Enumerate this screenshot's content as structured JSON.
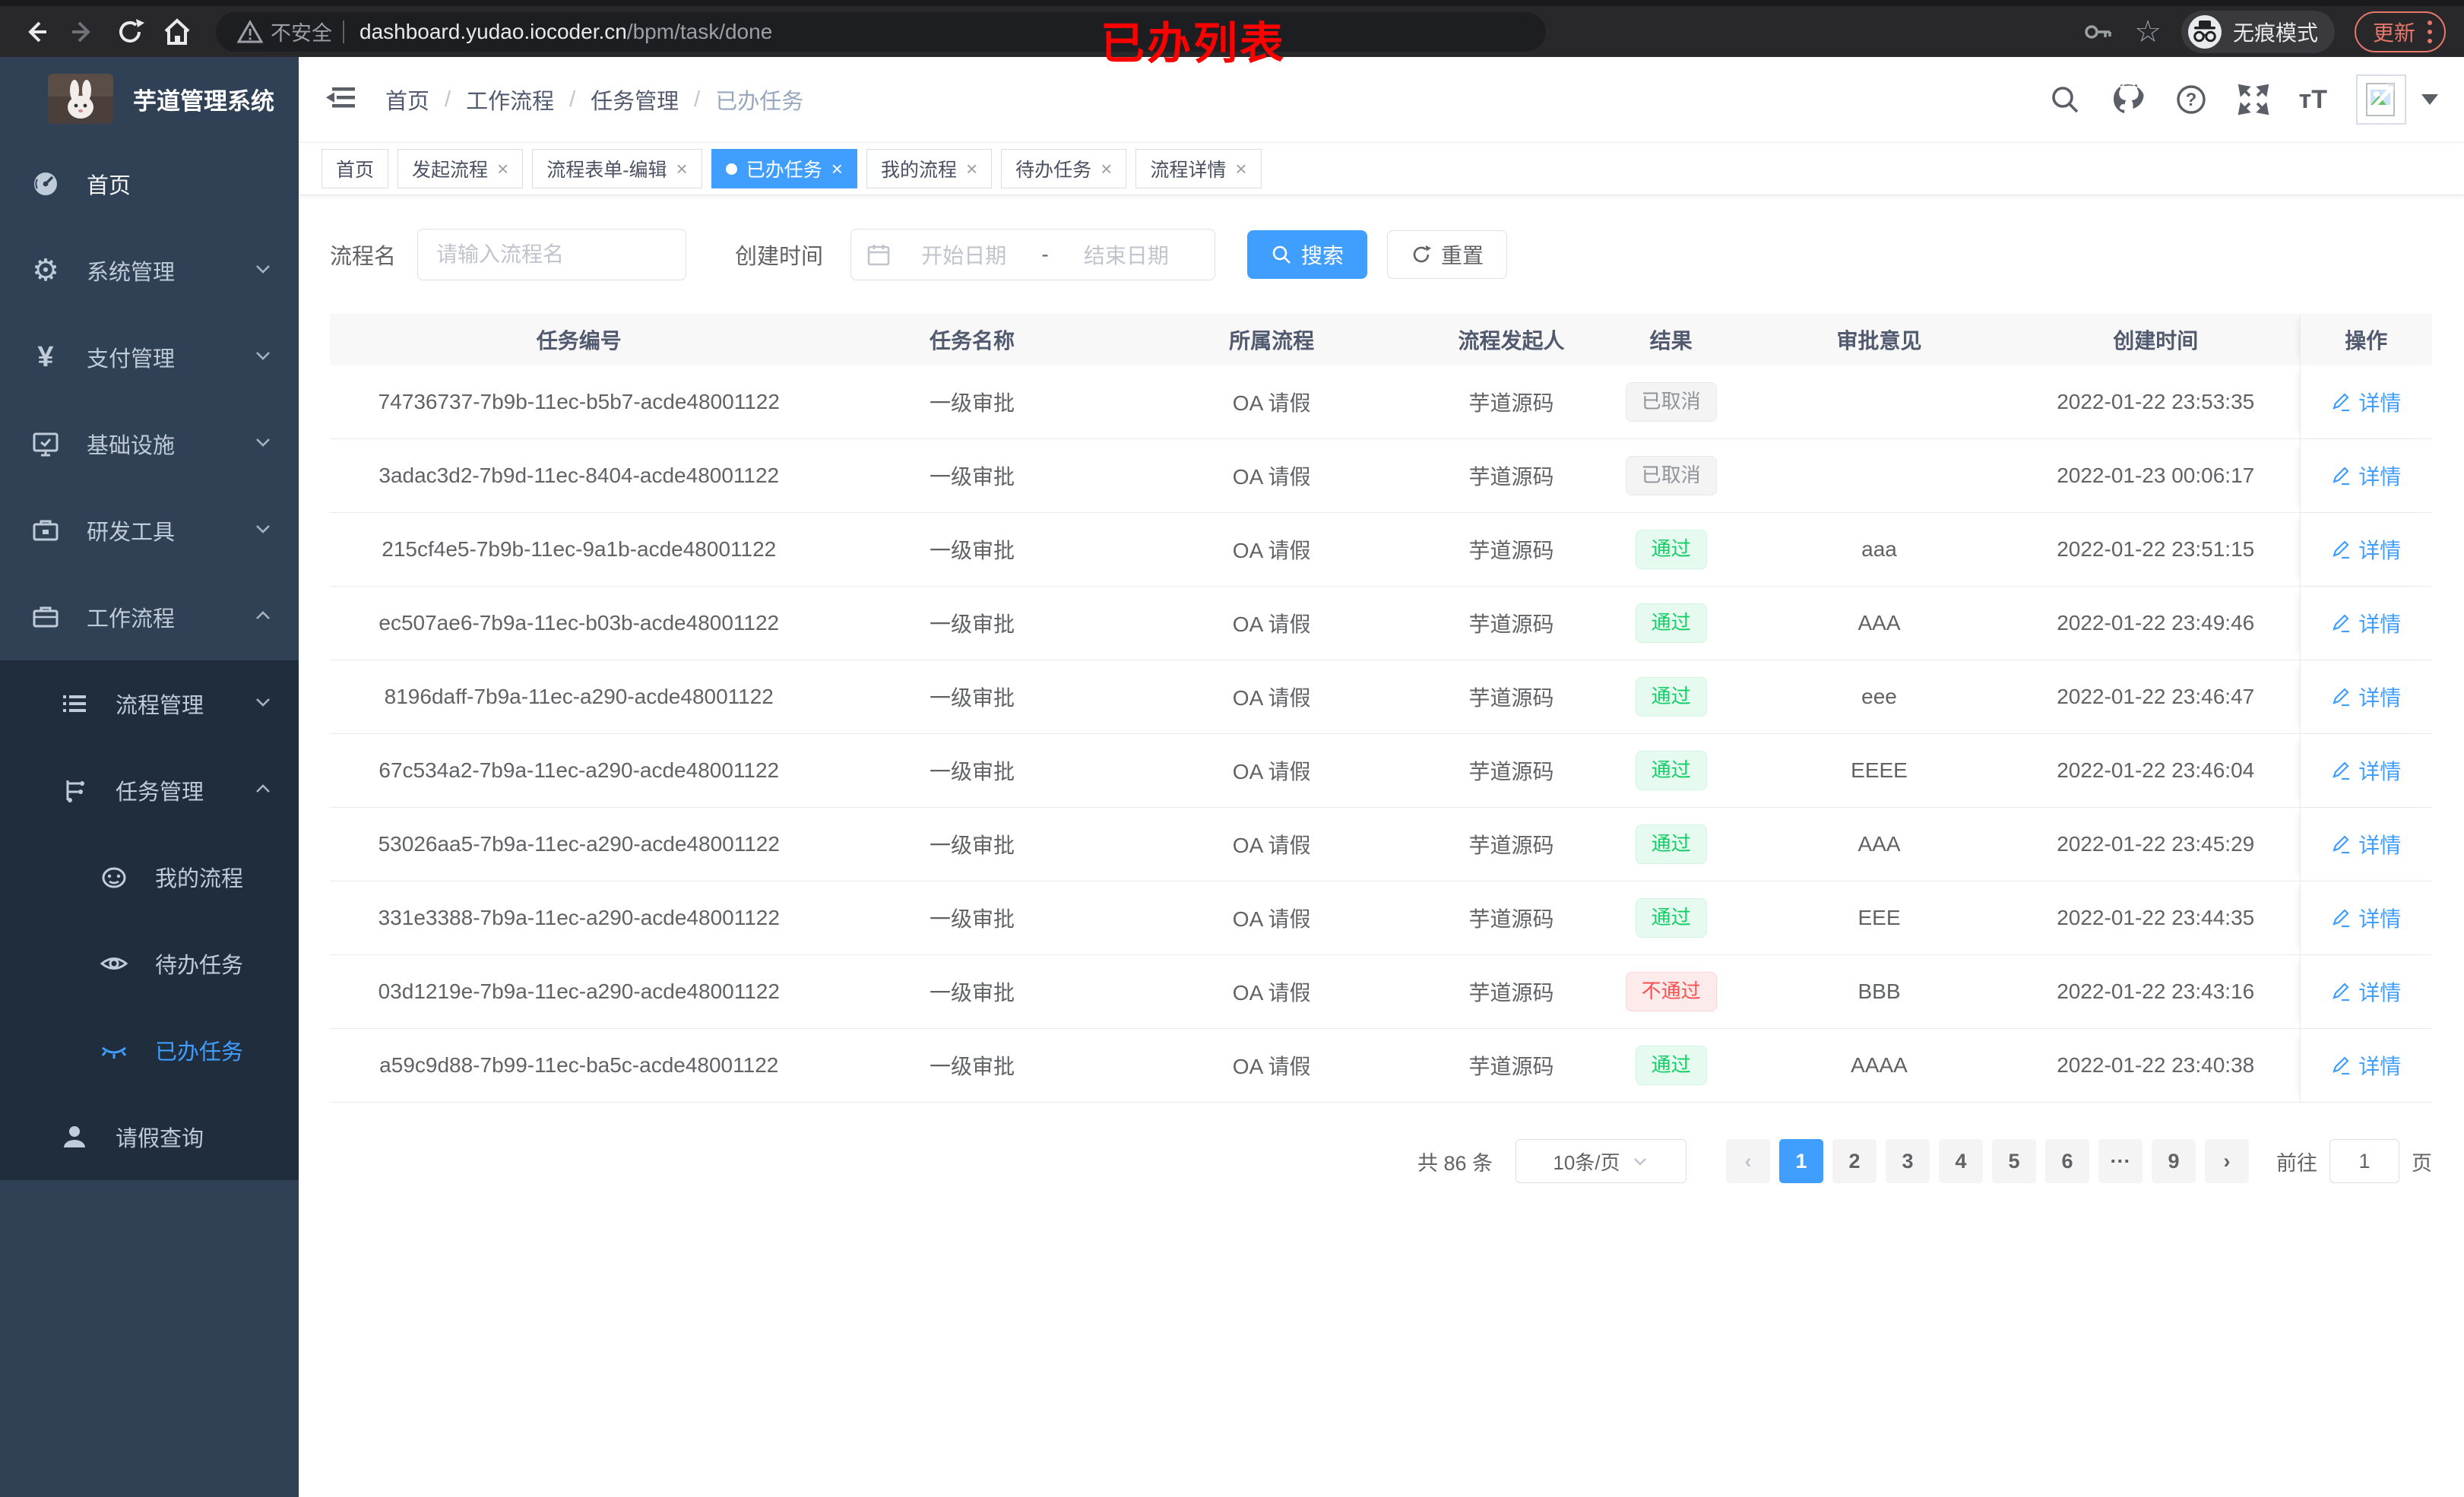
{
  "colors": {
    "accent": "#409eff",
    "success": "#13ce66",
    "danger": "#f9514f",
    "info": "#909399",
    "sidebar": "#304156",
    "submenu": "#1f2d3d",
    "annotation": "#ff0000"
  },
  "browser": {
    "security_label": "不安全",
    "url_domain": "dashboard.yudao.iocoder.cn",
    "url_path": "/bpm/task/done",
    "incognito_label": "无痕模式",
    "update_label": "更新"
  },
  "annotation": {
    "text": "已办列表"
  },
  "sidebar": {
    "app_title": "芋道管理系统",
    "menu": [
      {
        "label": "首页"
      },
      {
        "label": "系统管理"
      },
      {
        "label": "支付管理"
      },
      {
        "label": "基础设施"
      },
      {
        "label": "研发工具"
      },
      {
        "label": "工作流程"
      }
    ],
    "submenu": [
      {
        "label": "流程管理"
      },
      {
        "label": "任务管理"
      },
      {
        "label": "我的流程"
      },
      {
        "label": "待办任务"
      },
      {
        "label": "已办任务"
      },
      {
        "label": "请假查询"
      }
    ]
  },
  "breadcrumb": {
    "items": [
      "首页",
      "工作流程",
      "任务管理",
      "已办任务"
    ]
  },
  "tabs": [
    {
      "label": "首页",
      "closable": false,
      "active": false
    },
    {
      "label": "发起流程",
      "closable": true,
      "active": false
    },
    {
      "label": "流程表单-编辑",
      "closable": true,
      "active": false
    },
    {
      "label": "已办任务",
      "closable": true,
      "active": true
    },
    {
      "label": "我的流程",
      "closable": true,
      "active": false
    },
    {
      "label": "待办任务",
      "closable": true,
      "active": false
    },
    {
      "label": "流程详情",
      "closable": true,
      "active": false
    }
  ],
  "filters": {
    "name_label": "流程名",
    "name_placeholder": "请输入流程名",
    "time_label": "创建时间",
    "start_placeholder": "开始日期",
    "range_separator": "-",
    "end_placeholder": "结束日期",
    "search_label": "搜索",
    "reset_label": "重置"
  },
  "table": {
    "columns": [
      "任务编号",
      "任务名称",
      "所属流程",
      "流程发起人",
      "结果",
      "审批意见",
      "创建时间",
      "操作"
    ],
    "action_label": "详情",
    "rows": [
      {
        "id": "74736737-7b9b-11ec-b5b7-acde48001122",
        "name": "一级审批",
        "process": "OA 请假",
        "starter": "芋道源码",
        "result": "已取消",
        "result_type": "info",
        "comment": "",
        "time": "2022-01-22 23:53:35"
      },
      {
        "id": "3adac3d2-7b9d-11ec-8404-acde48001122",
        "name": "一级审批",
        "process": "OA 请假",
        "starter": "芋道源码",
        "result": "已取消",
        "result_type": "info",
        "comment": "",
        "time": "2022-01-23 00:06:17"
      },
      {
        "id": "215cf4e5-7b9b-11ec-9a1b-acde48001122",
        "name": "一级审批",
        "process": "OA 请假",
        "starter": "芋道源码",
        "result": "通过",
        "result_type": "success",
        "comment": "aaa",
        "time": "2022-01-22 23:51:15"
      },
      {
        "id": "ec507ae6-7b9a-11ec-b03b-acde48001122",
        "name": "一级审批",
        "process": "OA 请假",
        "starter": "芋道源码",
        "result": "通过",
        "result_type": "success",
        "comment": "AAA",
        "time": "2022-01-22 23:49:46"
      },
      {
        "id": "8196daff-7b9a-11ec-a290-acde48001122",
        "name": "一级审批",
        "process": "OA 请假",
        "starter": "芋道源码",
        "result": "通过",
        "result_type": "success",
        "comment": "eee",
        "time": "2022-01-22 23:46:47"
      },
      {
        "id": "67c534a2-7b9a-11ec-a290-acde48001122",
        "name": "一级审批",
        "process": "OA 请假",
        "starter": "芋道源码",
        "result": "通过",
        "result_type": "success",
        "comment": "EEEE",
        "time": "2022-01-22 23:46:04"
      },
      {
        "id": "53026aa5-7b9a-11ec-a290-acde48001122",
        "name": "一级审批",
        "process": "OA 请假",
        "starter": "芋道源码",
        "result": "通过",
        "result_type": "success",
        "comment": "AAA",
        "time": "2022-01-22 23:45:29"
      },
      {
        "id": "331e3388-7b9a-11ec-a290-acde48001122",
        "name": "一级审批",
        "process": "OA 请假",
        "starter": "芋道源码",
        "result": "通过",
        "result_type": "success",
        "comment": "EEE",
        "time": "2022-01-22 23:44:35"
      },
      {
        "id": "03d1219e-7b9a-11ec-a290-acde48001122",
        "name": "一级审批",
        "process": "OA 请假",
        "starter": "芋道源码",
        "result": "不通过",
        "result_type": "danger",
        "comment": "BBB",
        "time": "2022-01-22 23:43:16"
      },
      {
        "id": "a59c9d88-7b99-11ec-ba5c-acde48001122",
        "name": "一级审批",
        "process": "OA 请假",
        "starter": "芋道源码",
        "result": "通过",
        "result_type": "success",
        "comment": "AAAA",
        "time": "2022-01-22 23:40:38"
      }
    ]
  },
  "pagination": {
    "total_label": "共 86 条",
    "page_size_label": "10条/页",
    "pages": [
      "1",
      "2",
      "3",
      "4",
      "5",
      "6",
      "···",
      "9"
    ],
    "active_page": "1",
    "goto_label": "前往",
    "goto_value": "1",
    "goto_suffix": "页"
  },
  "icons": {
    "close_glyph": "×",
    "breadcrumb_separator": "/",
    "prev_glyph": "‹",
    "next_glyph": "›",
    "star_glyph": "☆",
    "gear_glyph": "⚙",
    "yen_glyph": "¥",
    "font_size_glyph": "тT"
  }
}
